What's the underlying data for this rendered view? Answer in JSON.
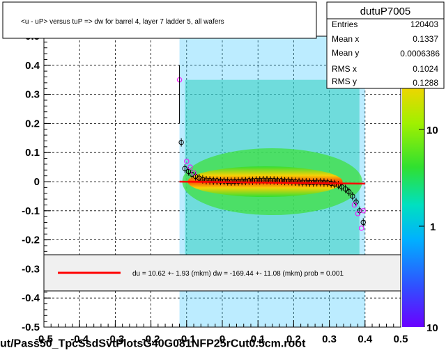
{
  "title": "<u - uP>       versus  tuP =>  dw for barrel 4, layer 7 ladder 5, all wafers",
  "file_label": "ut/Pass50_TpcSsdSvtPlotsG40G081NFP25rCut0.5cm.root",
  "stats": {
    "name": "dutuP7005",
    "rows": [
      {
        "label": "Entries",
        "value": "120403"
      },
      {
        "label": "Mean x",
        "value": "0.1337"
      },
      {
        "label": "Mean y",
        "value": "0.0006386"
      },
      {
        "label": "RMS x",
        "value": "0.1024"
      },
      {
        "label": "RMS y",
        "value": "0.1288"
      }
    ]
  },
  "fit_text": "du =   10.62 +-  1.93 (mkm) dw = -169.44 +- 11.08 (mkm) prob = 0.001",
  "colorbar": {
    "labels": [
      "10",
      "1",
      "10"
    ],
    "top_label_value": 10,
    "mid_label_value": 1,
    "bottom_label_value": 10
  },
  "colors": {
    "fit_line": "#ff0000",
    "frame": "#000000",
    "legend_bg": "#f0f0f0"
  },
  "chart_data": {
    "type": "scatter",
    "xlabel": "",
    "ylabel": "",
    "xlim": [
      -0.5,
      0.5
    ],
    "ylim": [
      -0.5,
      0.5
    ],
    "x_ticks": [
      "-0.5",
      "-0.4",
      "-0.3",
      "-0.2",
      "-0.1",
      "0",
      "0.1",
      "0.2",
      "0.3",
      "0.4",
      "0.5"
    ],
    "y_ticks": [
      "-0.5",
      "-0.4",
      "-0.3",
      "-0.2",
      "-0.1",
      "0",
      "0.1",
      "0.2",
      "0.3",
      "0.4",
      "0.5"
    ],
    "grid": true,
    "heatmap_x_range": [
      -0.12,
      0.4
    ],
    "profile_black": [
      [
        -0.115,
        0.135
      ],
      [
        -0.105,
        0.045
      ],
      [
        -0.095,
        0.035
      ],
      [
        -0.085,
        0.025
      ],
      [
        -0.075,
        0.018
      ],
      [
        -0.065,
        0.012
      ],
      [
        -0.055,
        0.008
      ],
      [
        -0.045,
        0.005
      ],
      [
        -0.035,
        0.004
      ],
      [
        -0.025,
        0.003
      ],
      [
        -0.015,
        0.003
      ],
      [
        -0.005,
        0.002
      ],
      [
        0.005,
        0.002
      ],
      [
        0.015,
        0.001
      ],
      [
        0.025,
        0.0
      ],
      [
        0.035,
        0.001
      ],
      [
        0.045,
        0.001
      ],
      [
        0.055,
        0.002
      ],
      [
        0.065,
        0.002
      ],
      [
        0.075,
        0.003
      ],
      [
        0.085,
        0.003
      ],
      [
        0.095,
        0.004
      ],
      [
        0.105,
        0.004
      ],
      [
        0.115,
        0.005
      ],
      [
        0.125,
        0.005
      ],
      [
        0.135,
        0.004
      ],
      [
        0.145,
        0.004
      ],
      [
        0.155,
        0.003
      ],
      [
        0.165,
        0.003
      ],
      [
        0.175,
        0.002
      ],
      [
        0.185,
        0.002
      ],
      [
        0.195,
        0.001
      ],
      [
        0.205,
        0.0
      ],
      [
        0.215,
        -0.001
      ],
      [
        0.225,
        -0.002
      ],
      [
        0.235,
        -0.002
      ],
      [
        0.245,
        -0.003
      ],
      [
        0.255,
        -0.003
      ],
      [
        0.265,
        -0.002
      ],
      [
        0.275,
        -0.002
      ],
      [
        0.285,
        -0.003
      ],
      [
        0.295,
        -0.004
      ],
      [
        0.305,
        -0.006
      ],
      [
        0.315,
        -0.008
      ],
      [
        0.325,
        -0.012
      ],
      [
        0.335,
        -0.018
      ],
      [
        0.345,
        -0.025
      ],
      [
        0.355,
        -0.035
      ],
      [
        0.365,
        -0.05
      ],
      [
        0.375,
        -0.07
      ],
      [
        0.385,
        -0.1
      ],
      [
        0.395,
        -0.14
      ]
    ],
    "profile_magenta": [
      [
        -0.12,
        0.35
      ],
      [
        -0.1,
        0.07
      ],
      [
        -0.09,
        0.05
      ],
      [
        -0.08,
        0.03
      ],
      [
        0.37,
        -0.08
      ],
      [
        0.38,
        -0.11
      ],
      [
        0.39,
        -0.16
      ],
      [
        0.395,
        -0.1
      ]
    ],
    "fit_line": {
      "x": [
        -0.12,
        0.4
      ],
      "y": [
        0.0,
        -0.007
      ]
    }
  }
}
